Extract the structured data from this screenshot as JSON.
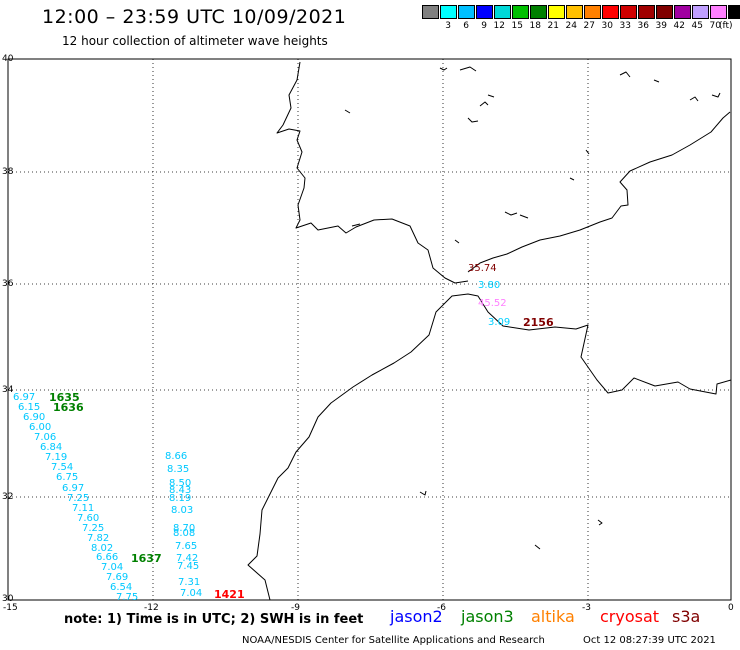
{
  "header": {
    "title": "12:00 – 23:59 UTC 10/09/2021",
    "subtitle": "12 hour collection of altimeter wave heights"
  },
  "colorbar": {
    "colors": [
      "#808080",
      "#00ffff",
      "#00c0ff",
      "#0000ff",
      "#00d8d8",
      "#00c000",
      "#008000",
      "#ffff00",
      "#ffc000",
      "#ff8000",
      "#ff0000",
      "#d00000",
      "#a00000",
      "#800000",
      "#a000a0",
      "#c0a0ff",
      "#ff80ff",
      "#000000"
    ],
    "labels": [
      "3",
      "6",
      "9",
      "12",
      "15",
      "18",
      "21",
      "24",
      "27",
      "30",
      "33",
      "36",
      "39",
      "42",
      "45",
      "70"
    ],
    "unit": "(ft)"
  },
  "axes": {
    "lat_labels": [
      "40",
      "38",
      "36",
      "34",
      "32",
      "30"
    ],
    "lon_labels": [
      "-15",
      "-12",
      "-9",
      "-6",
      "-3",
      "0"
    ]
  },
  "track_a": [
    {
      "v": "6.97",
      "c": "#00c8ff"
    },
    {
      "v": "6.15",
      "c": "#00c8ff"
    },
    {
      "v": "6.90",
      "c": "#00c8ff"
    },
    {
      "v": "6.00",
      "c": "#00c8ff"
    },
    {
      "v": "7.06",
      "c": "#00c8ff"
    },
    {
      "v": "6.84",
      "c": "#00c8ff"
    },
    {
      "v": "7.19",
      "c": "#00c8ff"
    },
    {
      "v": "7.54",
      "c": "#00c8ff"
    },
    {
      "v": "6.75",
      "c": "#00c8ff"
    },
    {
      "v": "6.97",
      "c": "#00c8ff"
    },
    {
      "v": "7.25",
      "c": "#00c8ff"
    },
    {
      "v": "7.11",
      "c": "#00c8ff"
    },
    {
      "v": "7.60",
      "c": "#00c8ff"
    },
    {
      "v": "7.25",
      "c": "#00c8ff"
    },
    {
      "v": "7.82",
      "c": "#00c8ff"
    },
    {
      "v": "8.02",
      "c": "#00c8ff"
    },
    {
      "v": "6.66",
      "c": "#00c8ff"
    },
    {
      "v": "7.04",
      "c": "#00c8ff"
    },
    {
      "v": "7.69",
      "c": "#00c8ff"
    },
    {
      "v": "6.54",
      "c": "#00c8ff"
    },
    {
      "v": "7.75",
      "c": "#00c8ff"
    }
  ],
  "track_b": [
    {
      "v": "8.66"
    },
    {
      "v": "8.35"
    },
    {
      "v": "8.50"
    },
    {
      "v": "8.43"
    },
    {
      "v": "8.19"
    },
    {
      "v": "8.03"
    },
    {
      "v": "8.70"
    },
    {
      "v": "8.08"
    },
    {
      "v": "7.65"
    },
    {
      "v": "7.42"
    },
    {
      "v": "7.45"
    },
    {
      "v": "7.31"
    },
    {
      "v": "7.04"
    }
  ],
  "strait_points": [
    {
      "v": "35.74",
      "c": "#800000"
    },
    {
      "v": "3.80",
      "c": "#00d0ff"
    },
    {
      "v": "45.52",
      "c": "#ff80ff"
    },
    {
      "v": "3.09",
      "c": "#00d0ff"
    }
  ],
  "time_marks": [
    {
      "v": "1635",
      "c": "#008000"
    },
    {
      "v": "1636",
      "c": "#008000"
    },
    {
      "v": "1637",
      "c": "#008000"
    },
    {
      "v": "1421",
      "c": "#ff0000"
    },
    {
      "v": "2156",
      "c": "#800000"
    }
  ],
  "note": "note: 1) Time is in UTC; 2) SWH is in feet",
  "legend": [
    {
      "name": "jason2",
      "c": "#0000ff"
    },
    {
      "name": "jason3",
      "c": "#008000"
    },
    {
      "name": "altika",
      "c": "#ff8000"
    },
    {
      "name": "cryosat",
      "c": "#ff0000"
    },
    {
      "name": "s3a",
      "c": "#800000"
    }
  ],
  "footer": {
    "left": "NOAA/NESDIS Center for Satellite Applications and Research",
    "right": "Oct 12 08:27:39 UTC 2021"
  }
}
